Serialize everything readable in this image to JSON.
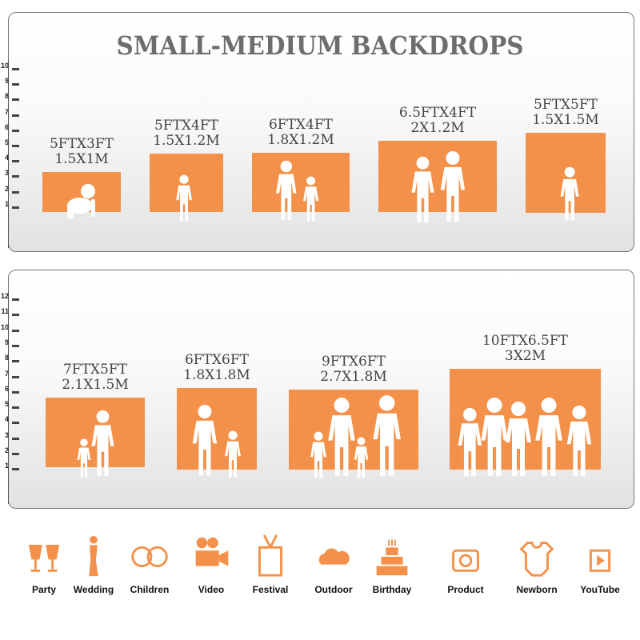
{
  "title": "SMALL-MEDIUM BACKDROPS",
  "ruler_top": [
    "10",
    "9",
    "8",
    "7",
    "6",
    "5",
    "4",
    "3",
    "2",
    "1"
  ],
  "ruler_bottom": [
    "12",
    "11",
    "10",
    "9",
    "8",
    "7",
    "6",
    "5",
    "4",
    "3",
    "2",
    "1"
  ],
  "sizes_top": [
    {
      "ft": "5FTX3FT",
      "m": "1.5X1M"
    },
    {
      "ft": "5FTX4FT",
      "m": "1.5X1.2M"
    },
    {
      "ft": "6FTX4FT",
      "m": "1.8X1.2M"
    },
    {
      "ft": "6.5FTX4FT",
      "m": "2X1.2M"
    },
    {
      "ft": "5FTX5FT",
      "m": "1.5X1.5M"
    }
  ],
  "sizes_bottom": [
    {
      "ft": "7FTX5FT",
      "m": "2.1X1.5M"
    },
    {
      "ft": "6FTX6FT",
      "m": "1.8X1.8M"
    },
    {
      "ft": "9FTX6FT",
      "m": "2.7X1.8M"
    },
    {
      "ft": "10FTX6.5FT",
      "m": "3X2M"
    }
  ],
  "uses": [
    {
      "label": "Party",
      "icon": "champagne-glasses-icon"
    },
    {
      "label": "Wedding",
      "icon": "wedding-couple-icon"
    },
    {
      "label": "Children",
      "icon": "children-faces-icon"
    },
    {
      "label": "Video",
      "icon": "film-camera-icon"
    },
    {
      "label": "Festival",
      "icon": "gift-box-icon"
    },
    {
      "label": "Outdoor",
      "icon": "cloud-icon"
    },
    {
      "label": "Birthday",
      "icon": "birthday-cake-icon"
    },
    {
      "label": "Product",
      "icon": "camera-icon"
    },
    {
      "label": "Newborn",
      "icon": "baby-onesie-icon"
    },
    {
      "label": "YouTube",
      "icon": "play-button-icon"
    }
  ],
  "colors": {
    "accent": "#f3914a",
    "title": "#6d6d6d"
  }
}
